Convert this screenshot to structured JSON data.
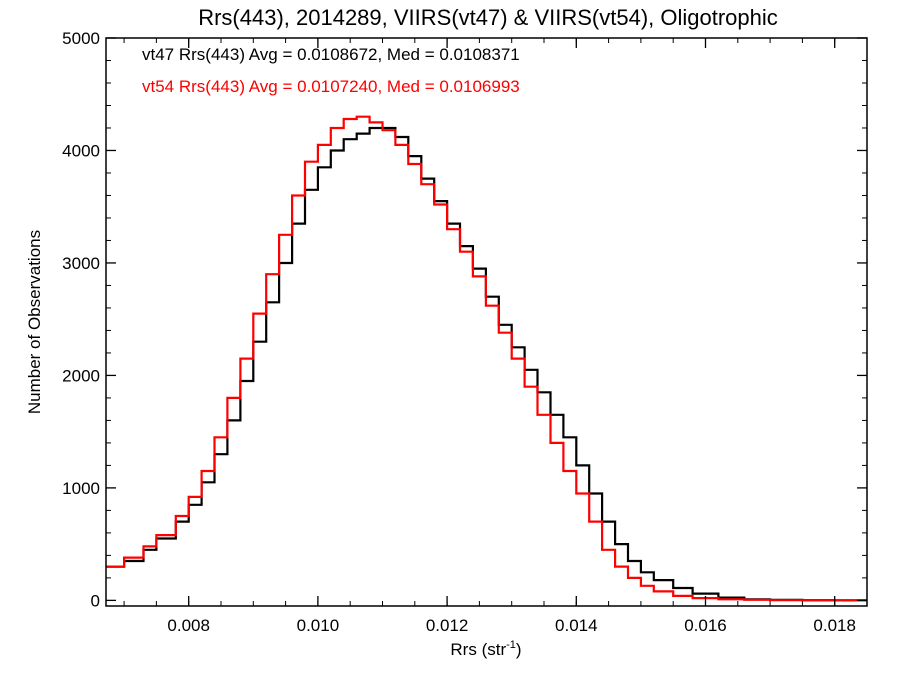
{
  "chart_data": {
    "type": "line",
    "title": "Rrs(443), 2014289, VIIRS(vt47) & VIIRS(vt54), Oligotrophic",
    "xlabel_main": "Rrs (str",
    "xlabel_sup": "-1",
    "xlabel_end": ")",
    "ylabel": "Number of Observations",
    "xlim": [
      0.00672,
      0.0185
    ],
    "ylim": [
      -50,
      5000
    ],
    "xticks": [
      0.008,
      0.01,
      0.012,
      0.014,
      0.016,
      0.018
    ],
    "xtick_labels": [
      "0.008",
      "0.010",
      "0.012",
      "0.014",
      "0.016",
      "0.018"
    ],
    "yticks": [
      0,
      1000,
      2000,
      3000,
      4000,
      5000
    ],
    "ytick_labels": [
      "0",
      "1000",
      "2000",
      "3000",
      "4000",
      "5000"
    ],
    "annotations": [
      {
        "text": "vt47 Rrs(443) Avg = 0.0108672, Med = 0.0108371",
        "color": "#000000"
      },
      {
        "text": "vt54 Rrs(443) Avg = 0.0107240, Med = 0.0106993",
        "color": "#ff0000"
      }
    ],
    "series": [
      {
        "color": "#000000",
        "x": [
          0.00672,
          0.007,
          0.0073,
          0.0075,
          0.0078,
          0.008,
          0.0082,
          0.0084,
          0.0086,
          0.0088,
          0.009,
          0.0092,
          0.0094,
          0.0096,
          0.0098,
          0.01,
          0.0102,
          0.0104,
          0.0106,
          0.0108,
          0.011,
          0.0112,
          0.0114,
          0.0116,
          0.0118,
          0.012,
          0.0122,
          0.0124,
          0.0126,
          0.0128,
          0.013,
          0.0132,
          0.0134,
          0.0136,
          0.0138,
          0.014,
          0.0142,
          0.0144,
          0.0146,
          0.0148,
          0.015,
          0.0152,
          0.0155,
          0.0158,
          0.0162,
          0.0166,
          0.017,
          0.0175,
          0.018,
          0.0185
        ],
        "y": [
          300,
          350,
          450,
          550,
          700,
          850,
          1050,
          1300,
          1600,
          1950,
          2300,
          2650,
          3000,
          3350,
          3650,
          3850,
          4000,
          4100,
          4150,
          4200,
          4200,
          4120,
          3950,
          3750,
          3550,
          3350,
          3150,
          2950,
          2700,
          2450,
          2250,
          2050,
          1850,
          1650,
          1450,
          1200,
          950,
          700,
          500,
          350,
          250,
          180,
          110,
          60,
          25,
          10,
          5,
          2,
          1,
          0
        ]
      },
      {
        "color": "#ff0000",
        "x": [
          0.00672,
          0.007,
          0.0073,
          0.0075,
          0.0078,
          0.008,
          0.0082,
          0.0084,
          0.0086,
          0.0088,
          0.009,
          0.0092,
          0.0094,
          0.0096,
          0.0098,
          0.01,
          0.0102,
          0.0104,
          0.0106,
          0.0108,
          0.011,
          0.0112,
          0.0114,
          0.0116,
          0.0118,
          0.012,
          0.0122,
          0.0124,
          0.0126,
          0.0128,
          0.013,
          0.0132,
          0.0134,
          0.0136,
          0.0138,
          0.014,
          0.0142,
          0.0144,
          0.0146,
          0.0148,
          0.015,
          0.0152,
          0.0155,
          0.0158,
          0.0162,
          0.0166,
          0.017,
          0.0175,
          0.018,
          0.0185
        ],
        "y": [
          300,
          380,
          480,
          580,
          750,
          920,
          1150,
          1450,
          1800,
          2150,
          2550,
          2900,
          3250,
          3600,
          3900,
          4050,
          4200,
          4280,
          4300,
          4250,
          4180,
          4050,
          3880,
          3700,
          3520,
          3300,
          3100,
          2880,
          2620,
          2380,
          2150,
          1900,
          1650,
          1400,
          1150,
          950,
          700,
          450,
          300,
          200,
          130,
          80,
          40,
          20,
          10,
          5,
          2,
          1,
          0,
          0
        ]
      }
    ]
  }
}
